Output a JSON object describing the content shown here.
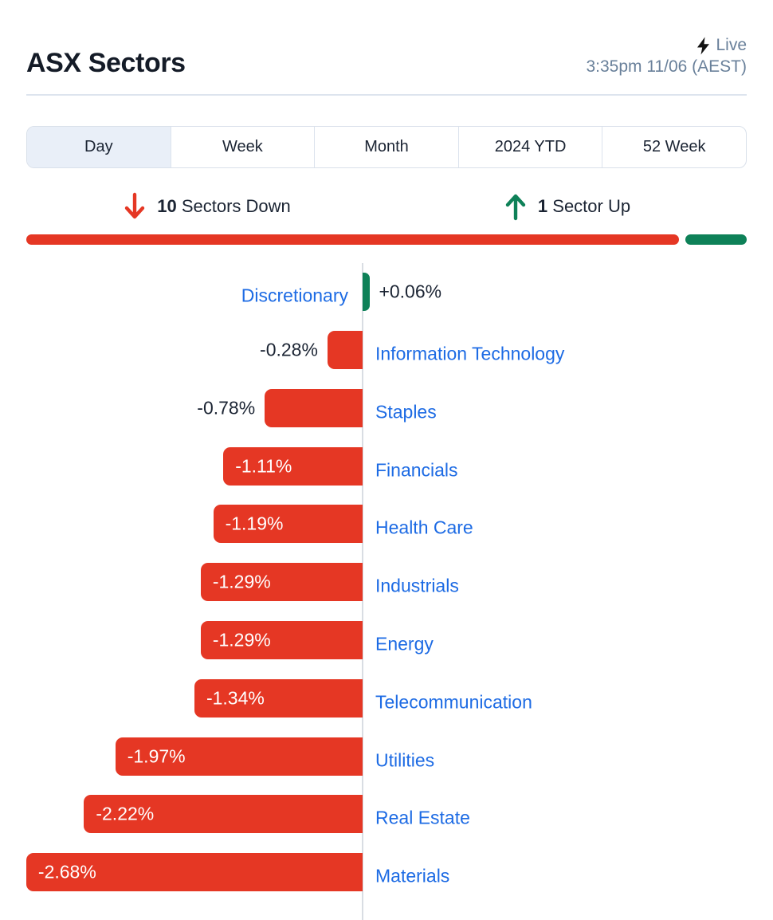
{
  "header": {
    "title": "ASX Sectors",
    "live_label": "Live",
    "timestamp": "3:35pm 11/06 (AEST)"
  },
  "tabs": [
    {
      "label": "Day",
      "selected": true
    },
    {
      "label": "Week",
      "selected": false
    },
    {
      "label": "Month",
      "selected": false
    },
    {
      "label": "2024 YTD",
      "selected": false
    },
    {
      "label": "52 Week",
      "selected": false
    }
  ],
  "summary": {
    "down_count": "10",
    "down_label": "Sectors Down",
    "up_count": "1",
    "up_label": "Sector Up"
  },
  "colors": {
    "negative_red": "#e53724",
    "positive_green": "#0e8158",
    "link_blue": "#1d6be4",
    "text_dark": "#1b2433",
    "muted_slate": "#69809a",
    "selected_tab_bg": "#e9eff8"
  },
  "icons": {
    "live": "lightning-bolt-icon",
    "down": "arrow-down-icon",
    "up": "arrow-up-icon"
  },
  "chart_data": {
    "type": "bar",
    "orientation": "horizontal-diverging",
    "unit": "percent",
    "title": "ASX Sectors — Day change",
    "xlim": [
      -2.68,
      0.06
    ],
    "grid": false,
    "sectors": [
      {
        "label": "Discretionary",
        "value": 0.06,
        "display": "+0.06%",
        "value_inside": false
      },
      {
        "label": "Information Technology",
        "value": -0.28,
        "display": "-0.28%",
        "value_inside": false
      },
      {
        "label": "Staples",
        "value": -0.78,
        "display": "-0.78%",
        "value_inside": false
      },
      {
        "label": "Financials",
        "value": -1.11,
        "display": "-1.11%",
        "value_inside": true
      },
      {
        "label": "Health Care",
        "value": -1.19,
        "display": "-1.19%",
        "value_inside": true
      },
      {
        "label": "Industrials",
        "value": -1.29,
        "display": "-1.29%",
        "value_inside": true
      },
      {
        "label": "Energy",
        "value": -1.29,
        "display": "-1.29%",
        "value_inside": true
      },
      {
        "label": "Telecommunication",
        "value": -1.34,
        "display": "-1.34%",
        "value_inside": true
      },
      {
        "label": "Utilities",
        "value": -1.97,
        "display": "-1.97%",
        "value_inside": true
      },
      {
        "label": "Real Estate",
        "value": -2.22,
        "display": "-2.22%",
        "value_inside": true
      },
      {
        "label": "Materials",
        "value": -2.68,
        "display": "-2.68%",
        "value_inside": true
      }
    ]
  }
}
